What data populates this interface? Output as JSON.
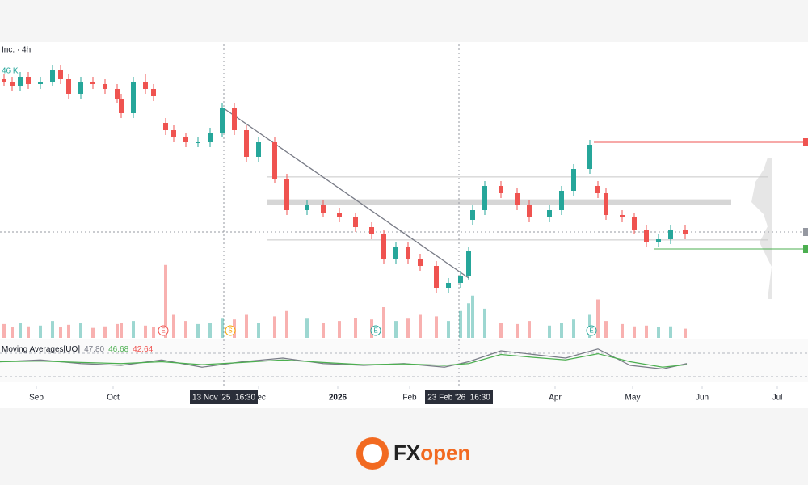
{
  "chart_data": {
    "type": "candlestick",
    "title": "Inc. · 4h",
    "volume_label": "46 K",
    "up_color": "#26a69a",
    "down_color": "#ef5350",
    "xlim": [
      0,
      100
    ],
    "ylim": [
      0,
      110
    ],
    "x": [
      0.5,
      1.5,
      2.5,
      3.5,
      5,
      6.5,
      7.5,
      8.5,
      10,
      11.5,
      13,
      14.5,
      15,
      16.5,
      18,
      19,
      20.5,
      21.5,
      23,
      24.5,
      26,
      27.5,
      29,
      30.5,
      32,
      34,
      35.5,
      38,
      40,
      42,
      44,
      46,
      47.5,
      49,
      50.5,
      52,
      54,
      55.5,
      57,
      58,
      58.5,
      60,
      62,
      64,
      65.5,
      68,
      69.5,
      71,
      73,
      74,
      75,
      77,
      78.5,
      80,
      81.5,
      83,
      84.8
    ],
    "open": [
      94,
      93,
      91,
      95,
      92,
      93,
      98,
      94,
      88,
      93,
      92,
      90,
      86,
      80,
      93,
      90,
      76,
      73,
      70,
      68,
      68,
      72,
      82,
      73,
      62,
      68,
      53,
      40,
      42,
      39,
      37,
      33,
      30,
      20,
      25,
      20,
      17,
      8,
      10,
      13,
      36,
      40,
      50,
      47,
      42,
      37,
      40,
      48,
      57,
      50,
      47,
      38,
      37,
      32,
      27,
      28,
      32
    ],
    "high": [
      96,
      95,
      97,
      97,
      95,
      100,
      100,
      96,
      95,
      95,
      94,
      92,
      88,
      95,
      96,
      92,
      78,
      75,
      72,
      70,
      74,
      84,
      84,
      75,
      70,
      70,
      55,
      44,
      44,
      41,
      39,
      35,
      32,
      27,
      27,
      22,
      19,
      12,
      15,
      25,
      42,
      52,
      52,
      49,
      44,
      42,
      50,
      59,
      69,
      52,
      49,
      40,
      39,
      34,
      30,
      34,
      34
    ],
    "low": [
      91,
      89,
      89,
      90,
      90,
      91,
      92,
      86,
      86,
      90,
      88,
      84,
      78,
      78,
      88,
      85,
      71,
      68,
      66,
      66,
      66,
      70,
      71,
      60,
      60,
      51,
      38,
      38,
      37,
      35,
      31,
      28,
      18,
      18,
      18,
      15,
      6,
      6,
      8,
      11,
      34,
      38,
      45,
      40,
      35,
      35,
      38,
      46,
      55,
      45,
      36,
      35,
      30,
      25,
      25,
      26,
      28
    ],
    "close": [
      93,
      91,
      95,
      92,
      93,
      98,
      94,
      88,
      93,
      92,
      90,
      86,
      80,
      93,
      90,
      87,
      73,
      70,
      68,
      68,
      72,
      82,
      73,
      62,
      68,
      53,
      40,
      42,
      39,
      37,
      33,
      30,
      20,
      25,
      20,
      17,
      8,
      10,
      13,
      23,
      40,
      50,
      47,
      42,
      37,
      40,
      48,
      57,
      67,
      47,
      38,
      37,
      32,
      27,
      28,
      32,
      30
    ],
    "volume": [
      18,
      14,
      20,
      15,
      16,
      22,
      14,
      17,
      19,
      13,
      15,
      18,
      20,
      22,
      16,
      14,
      95,
      30,
      22,
      18,
      20,
      25,
      24,
      30,
      20,
      28,
      35,
      25,
      20,
      22,
      26,
      24,
      40,
      22,
      25,
      30,
      28,
      22,
      35,
      45,
      55,
      38,
      20,
      18,
      22,
      16,
      20,
      24,
      30,
      50,
      22,
      18,
      15,
      16,
      14,
      15,
      12
    ],
    "volume_ylim": [
      0,
      100
    ],
    "xticks": [
      {
        "value": 4.5,
        "label": "Sep"
      },
      {
        "value": 14,
        "label": "Oct"
      },
      {
        "value": 32,
        "label": "Dec"
      },
      {
        "value": 41.8,
        "label": "2026"
      },
      {
        "value": 50.7,
        "label": "Feb"
      },
      {
        "value": 68.7,
        "label": "Apr"
      },
      {
        "value": 78.3,
        "label": "May"
      },
      {
        "value": 86.9,
        "label": "Jun"
      },
      {
        "value": 96.2,
        "label": "Jul"
      }
    ],
    "crosshairs": [
      {
        "x": 27.7,
        "label": "13 Nov '25  16:30"
      },
      {
        "x": 56.8,
        "label": "23 Feb '26  16:30"
      }
    ],
    "trendline": {
      "x": [
        27.7,
        58
      ],
      "values": [
        82,
        12
      ],
      "color": "#787b86"
    },
    "levels": [
      {
        "value": 68,
        "x": [
          73.5,
          100
        ],
        "color": "#ef5350"
      },
      {
        "value": 53.7,
        "x": [
          33,
          95
        ],
        "color": "#c8c8c8"
      },
      {
        "value": 43.3,
        "x": [
          33,
          90.5
        ],
        "color": "#d6d6d6",
        "kind": "zone"
      },
      {
        "value": 31,
        "x": [
          0,
          100
        ],
        "color": "#9598a1",
        "kind": "dotted"
      },
      {
        "value": 27.7,
        "x": [
          33,
          95
        ],
        "color": "#c8c8c8"
      },
      {
        "value": 24,
        "x": [
          81,
          100
        ],
        "color": "#4caf50"
      }
    ],
    "events": [
      {
        "x": 20.2,
        "label": "E",
        "color": "#ef5350"
      },
      {
        "x": 28.5,
        "label": "S",
        "color": "#f7a600"
      },
      {
        "x": 46.5,
        "label": "E",
        "color": "#26a69a"
      },
      {
        "x": 73.2,
        "label": "E",
        "color": "#26a69a"
      }
    ],
    "indicator": {
      "name": "Moving Averages[UO]",
      "readouts": [
        "47.80",
        "46.68",
        "42.64"
      ],
      "readout_colors": [
        "#787b86",
        "#4caf50",
        "#ef5350"
      ],
      "ylim": [
        0,
        100
      ],
      "x": [
        0,
        5,
        10,
        15,
        20,
        25,
        30,
        35,
        40,
        45,
        50,
        55,
        58,
        62,
        66,
        70,
        74,
        78,
        82,
        85
      ],
      "series": [
        {
          "color": "#787b86",
          "values": [
            50,
            55,
            45,
            40,
            55,
            35,
            50,
            60,
            45,
            40,
            45,
            35,
            50,
            80,
            70,
            60,
            85,
            40,
            30,
            45
          ]
        },
        {
          "color": "#4caf50",
          "values": [
            50,
            52,
            48,
            45,
            50,
            42,
            48,
            55,
            48,
            42,
            44,
            40,
            45,
            70,
            62,
            55,
            72,
            50,
            35,
            42
          ]
        }
      ]
    }
  },
  "logo": {
    "parts": [
      "FX",
      "open"
    ]
  }
}
